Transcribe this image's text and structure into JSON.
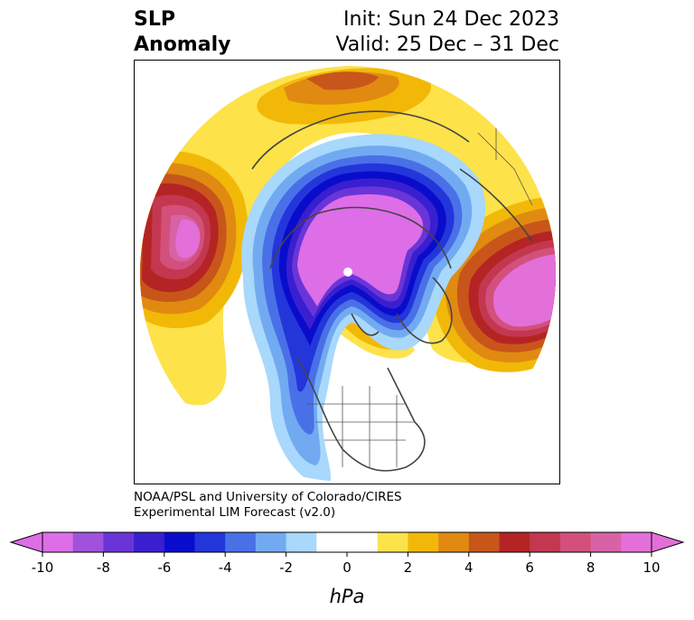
{
  "title": {
    "left_line1": "SLP",
    "left_line2": "Anomaly",
    "right_line1": "Init: Sun 24 Dec 2023",
    "right_line2": "Valid: 25 Dec – 31 Dec"
  },
  "credit": {
    "line1": "NOAA/PSL and University of Colorado/CIRES",
    "line2": "Experimental LIM Forecast (v2.0)"
  },
  "colorbar": {
    "unit": "hPa",
    "ticks": [
      "-10",
      "-8",
      "-6",
      "-4",
      "-2",
      "0",
      "2",
      "4",
      "6",
      "8",
      "10"
    ],
    "colors": [
      "#dd6ee8",
      "#a052dc",
      "#6a35d8",
      "#3a1fd0",
      "#0a0ccc",
      "#2336da",
      "#4a70e8",
      "#72aaf2",
      "#a8d8fb",
      "#ffffff",
      "#ffffff",
      "#fde24a",
      "#f2b808",
      "#e08a12",
      "#c8561a",
      "#b52424",
      "#c33850",
      "#d3507c",
      "#d862a6",
      "#e270d8"
    ],
    "under_color": "#dd6ee8",
    "over_color": "#e270d8"
  },
  "map": {
    "projection": "north polar stereographic",
    "features": [
      "coastlines",
      "country borders",
      "US state borders",
      "Canadian provinces"
    ]
  }
}
